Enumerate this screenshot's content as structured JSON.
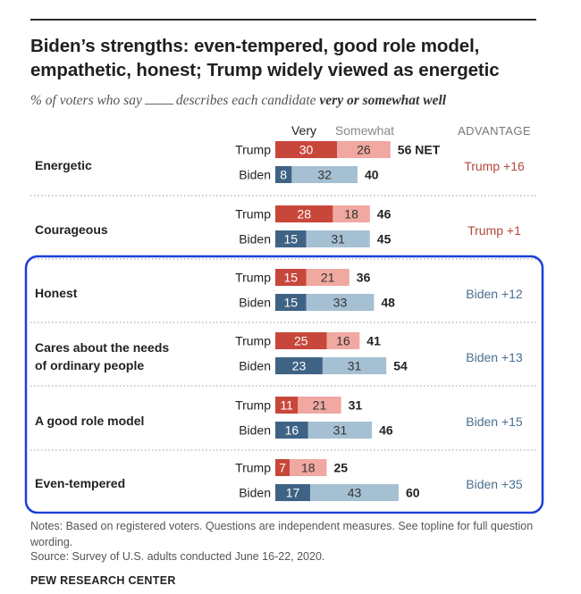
{
  "title": "Biden’s strengths: even-tempered, good role model, empathetic, honest; Trump widely viewed as energetic",
  "subtitle": {
    "prefix": "% of voters who say",
    "middle": "describes each candidate",
    "emphasis": "very or somewhat well"
  },
  "colors": {
    "trump_very": "#c8473b",
    "trump_somewhat": "#f0a8a0",
    "biden_very": "#3f6385",
    "biden_somewhat": "#a6c0d3",
    "trump_adv": "#b5473a",
    "biden_adv": "#4a6f8f",
    "highlight": "#1a3fd9"
  },
  "chart_data": {
    "type": "bar",
    "orientation": "horizontal-stacked",
    "legend": [
      "Very",
      "Somewhat"
    ],
    "advantage_header": "ADVANTAGE",
    "net_suffix": "NET",
    "highlighted_categories": [
      "Honest",
      "Cares about the needs of ordinary people",
      "A good role model",
      "Even-tempered"
    ],
    "categories": [
      {
        "label": "Energetic",
        "rows": [
          {
            "candidate": "Trump",
            "very": 30,
            "somewhat": 26,
            "net": 56
          },
          {
            "candidate": "Biden",
            "very": 8,
            "somewhat": 32,
            "net": 40
          }
        ],
        "advantage": "Trump +16"
      },
      {
        "label": "Courageous",
        "rows": [
          {
            "candidate": "Trump",
            "very": 28,
            "somewhat": 18,
            "net": 46
          },
          {
            "candidate": "Biden",
            "very": 15,
            "somewhat": 31,
            "net": 45
          }
        ],
        "advantage": "Trump +1"
      },
      {
        "label": "Honest",
        "rows": [
          {
            "candidate": "Trump",
            "very": 15,
            "somewhat": 21,
            "net": 36
          },
          {
            "candidate": "Biden",
            "very": 15,
            "somewhat": 33,
            "net": 48
          }
        ],
        "advantage": "Biden +12"
      },
      {
        "label": "Cares about the needs of ordinary people",
        "rows": [
          {
            "candidate": "Trump",
            "very": 25,
            "somewhat": 16,
            "net": 41
          },
          {
            "candidate": "Biden",
            "very": 23,
            "somewhat": 31,
            "net": 54
          }
        ],
        "advantage": "Biden +13"
      },
      {
        "label": "A good role model",
        "rows": [
          {
            "candidate": "Trump",
            "very": 11,
            "somewhat": 21,
            "net": 31
          },
          {
            "candidate": "Biden",
            "very": 16,
            "somewhat": 31,
            "net": 46
          }
        ],
        "advantage": "Biden +15"
      },
      {
        "label": "Even-tempered",
        "rows": [
          {
            "candidate": "Trump",
            "very": 7,
            "somewhat": 18,
            "net": 25
          },
          {
            "candidate": "Biden",
            "very": 17,
            "somewhat": 43,
            "net": 60
          }
        ],
        "advantage": "Biden +35"
      }
    ]
  },
  "notes": "Notes: Based on registered voters. Questions are independent measures. See topline for full question wording.",
  "source": "Source: Survey of U.S. adults conducted June 16-22, 2020.",
  "org": "PEW RESEARCH CENTER"
}
